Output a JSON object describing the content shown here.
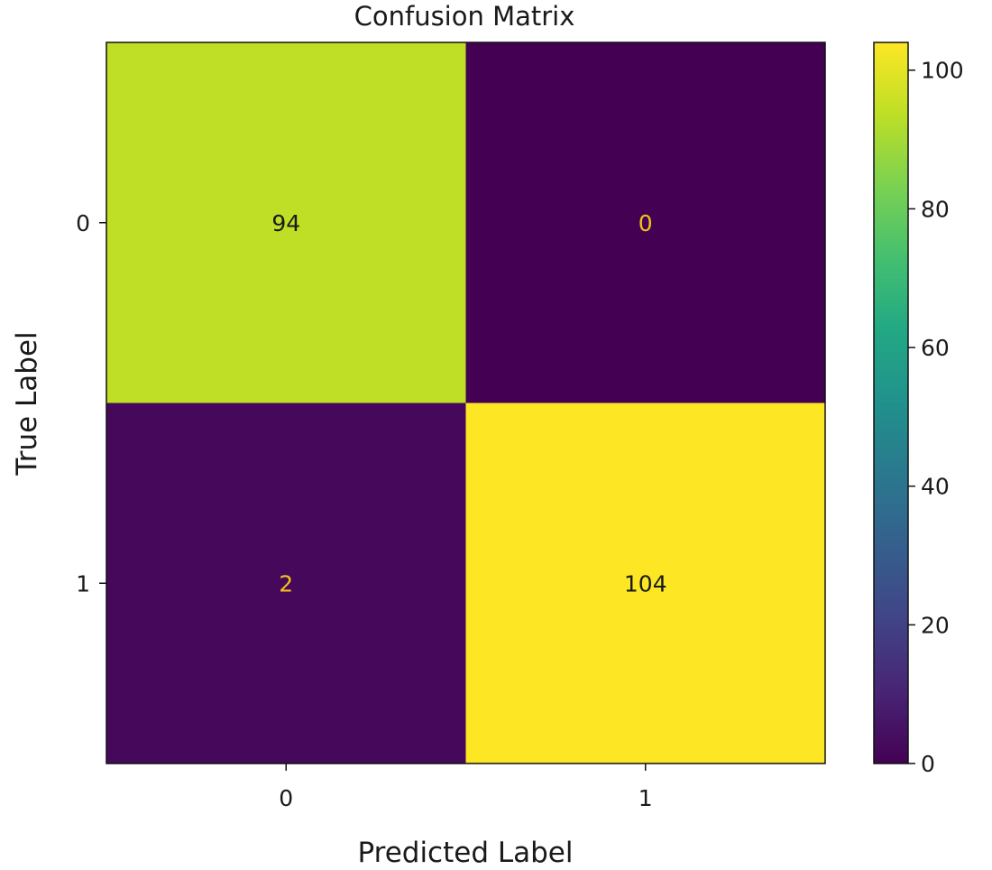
{
  "chart_data": {
    "type": "heatmap",
    "title": "Confusion Matrix",
    "xlabel": "Predicted Label",
    "ylabel": "True Label",
    "x_categories": [
      "0",
      "1"
    ],
    "y_categories": [
      "0",
      "1"
    ],
    "matrix": [
      [
        94,
        0
      ],
      [
        2,
        104
      ]
    ],
    "colormap": "viridis",
    "colorbar": {
      "range": [
        0,
        104
      ],
      "ticks": [
        0,
        20,
        40,
        60,
        80,
        100
      ],
      "tick_labels": [
        "0",
        "20",
        "40",
        "60",
        "80",
        "100"
      ]
    },
    "text_color_light_cells": "#1a1a1a",
    "text_color_dark_cells": "#f2c21a"
  }
}
